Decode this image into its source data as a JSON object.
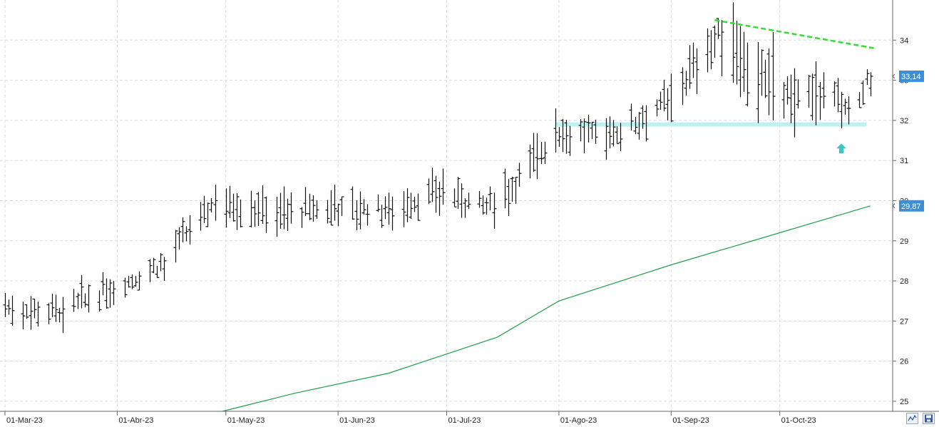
{
  "chart_data": {
    "type": "bar",
    "subtype": "ohlc",
    "x_axis": {
      "type": "date",
      "range": [
        "2023-03-01",
        "2023-10-31"
      ],
      "tick_labels": [
        "01-Mar-23",
        "01-Abr-23",
        "01-May-23",
        "01-Jun-23",
        "01-Jul-23",
        "01-Ago-23",
        "01-Sep-23",
        "01-Oct-23"
      ],
      "tick_dates": [
        "2023-03-01",
        "2023-04-01",
        "2023-05-01",
        "2023-06-01",
        "2023-07-01",
        "2023-08-01",
        "2023-09-01",
        "2023-10-01"
      ]
    },
    "y_axis": {
      "position": "right",
      "range": [
        24.75,
        35.0
      ],
      "ticks": [
        25,
        26,
        27,
        28,
        29,
        30,
        31,
        32,
        33,
        34
      ],
      "tick_labels": [
        "25",
        "26",
        "27",
        "28",
        "29",
        "30",
        "31",
        "32",
        "33",
        "34"
      ]
    },
    "grid": true,
    "price_marks": [
      {
        "value": "33,14",
        "series": "price",
        "color": "#3b8fd6"
      },
      {
        "value": "29,87",
        "series": "moving_average",
        "color": "#3b8fd6"
      }
    ],
    "anchors": [
      {
        "date": "2023-03-01",
        "o": 27.4,
        "h": 27.7,
        "l": 27.1,
        "c": 27.3
      },
      {
        "date": "2023-03-17",
        "o": 27.2,
        "h": 27.6,
        "l": 26.7,
        "c": 27.3
      },
      {
        "date": "2023-03-31",
        "o": 27.7,
        "h": 28.0,
        "l": 27.4,
        "c": 27.8
      },
      {
        "date": "2023-04-14",
        "o": 28.3,
        "h": 28.6,
        "l": 28.0,
        "c": 28.5
      },
      {
        "date": "2023-04-28",
        "o": 29.9,
        "h": 30.4,
        "l": 29.5,
        "c": 30.0
      },
      {
        "date": "2023-05-15",
        "o": 29.5,
        "h": 30.1,
        "l": 29.1,
        "c": 29.7
      },
      {
        "date": "2023-05-31",
        "o": 29.9,
        "h": 30.4,
        "l": 29.5,
        "c": 29.8
      },
      {
        "date": "2023-06-15",
        "o": 29.7,
        "h": 30.2,
        "l": 29.4,
        "c": 29.8
      },
      {
        "date": "2023-06-30",
        "o": 30.3,
        "h": 30.8,
        "l": 29.9,
        "c": 30.2
      },
      {
        "date": "2023-07-14",
        "o": 29.7,
        "h": 30.2,
        "l": 29.3,
        "c": 29.8
      },
      {
        "date": "2023-07-31",
        "o": 31.8,
        "h": 32.3,
        "l": 31.2,
        "c": 31.7
      },
      {
        "date": "2023-08-15",
        "o": 31.7,
        "h": 32.1,
        "l": 31.3,
        "c": 31.6
      },
      {
        "date": "2023-08-31",
        "o": 32.4,
        "h": 32.8,
        "l": 32.0,
        "c": 32.5
      },
      {
        "date": "2023-09-15",
        "o": 33.6,
        "h": 34.5,
        "l": 33.1,
        "c": 34.2
      },
      {
        "date": "2023-09-29",
        "o": 33.6,
        "h": 34.2,
        "l": 32.0,
        "c": 32.6
      },
      {
        "date": "2023-10-13",
        "o": 32.8,
        "h": 33.2,
        "l": 32.3,
        "c": 32.6
      },
      {
        "date": "2023-10-20",
        "o": 32.3,
        "h": 32.6,
        "l": 31.9,
        "c": 32.3
      },
      {
        "date": "2023-10-26",
        "o": 32.8,
        "h": 33.2,
        "l": 32.6,
        "c": 33.1
      }
    ],
    "moving_average": [
      {
        "date": "2023-04-30",
        "value": 24.75
      },
      {
        "date": "2023-05-20",
        "value": 25.2
      },
      {
        "date": "2023-06-15",
        "value": 25.7
      },
      {
        "date": "2023-07-15",
        "value": 26.6
      },
      {
        "date": "2023-08-01",
        "value": 27.5
      },
      {
        "date": "2023-09-01",
        "value": 28.4
      },
      {
        "date": "2023-10-01",
        "value": 29.2
      },
      {
        "date": "2023-10-26",
        "value": 29.87
      }
    ],
    "annotations": [
      {
        "type": "trendline",
        "color": "#33dd33",
        "style": "dashed",
        "from": {
          "date": "2023-09-13",
          "value": 34.5
        },
        "to": {
          "date": "2023-10-27",
          "value": 33.8
        }
      },
      {
        "type": "support_band",
        "color": "#bff0f4",
        "from": {
          "date": "2023-07-31",
          "value": 31.9
        },
        "to": {
          "date": "2023-10-25",
          "value": 31.9
        }
      },
      {
        "type": "arrow_up",
        "color": "#3cc6c6",
        "at": {
          "date": "2023-10-18",
          "value": 31.3
        }
      }
    ]
  }
}
